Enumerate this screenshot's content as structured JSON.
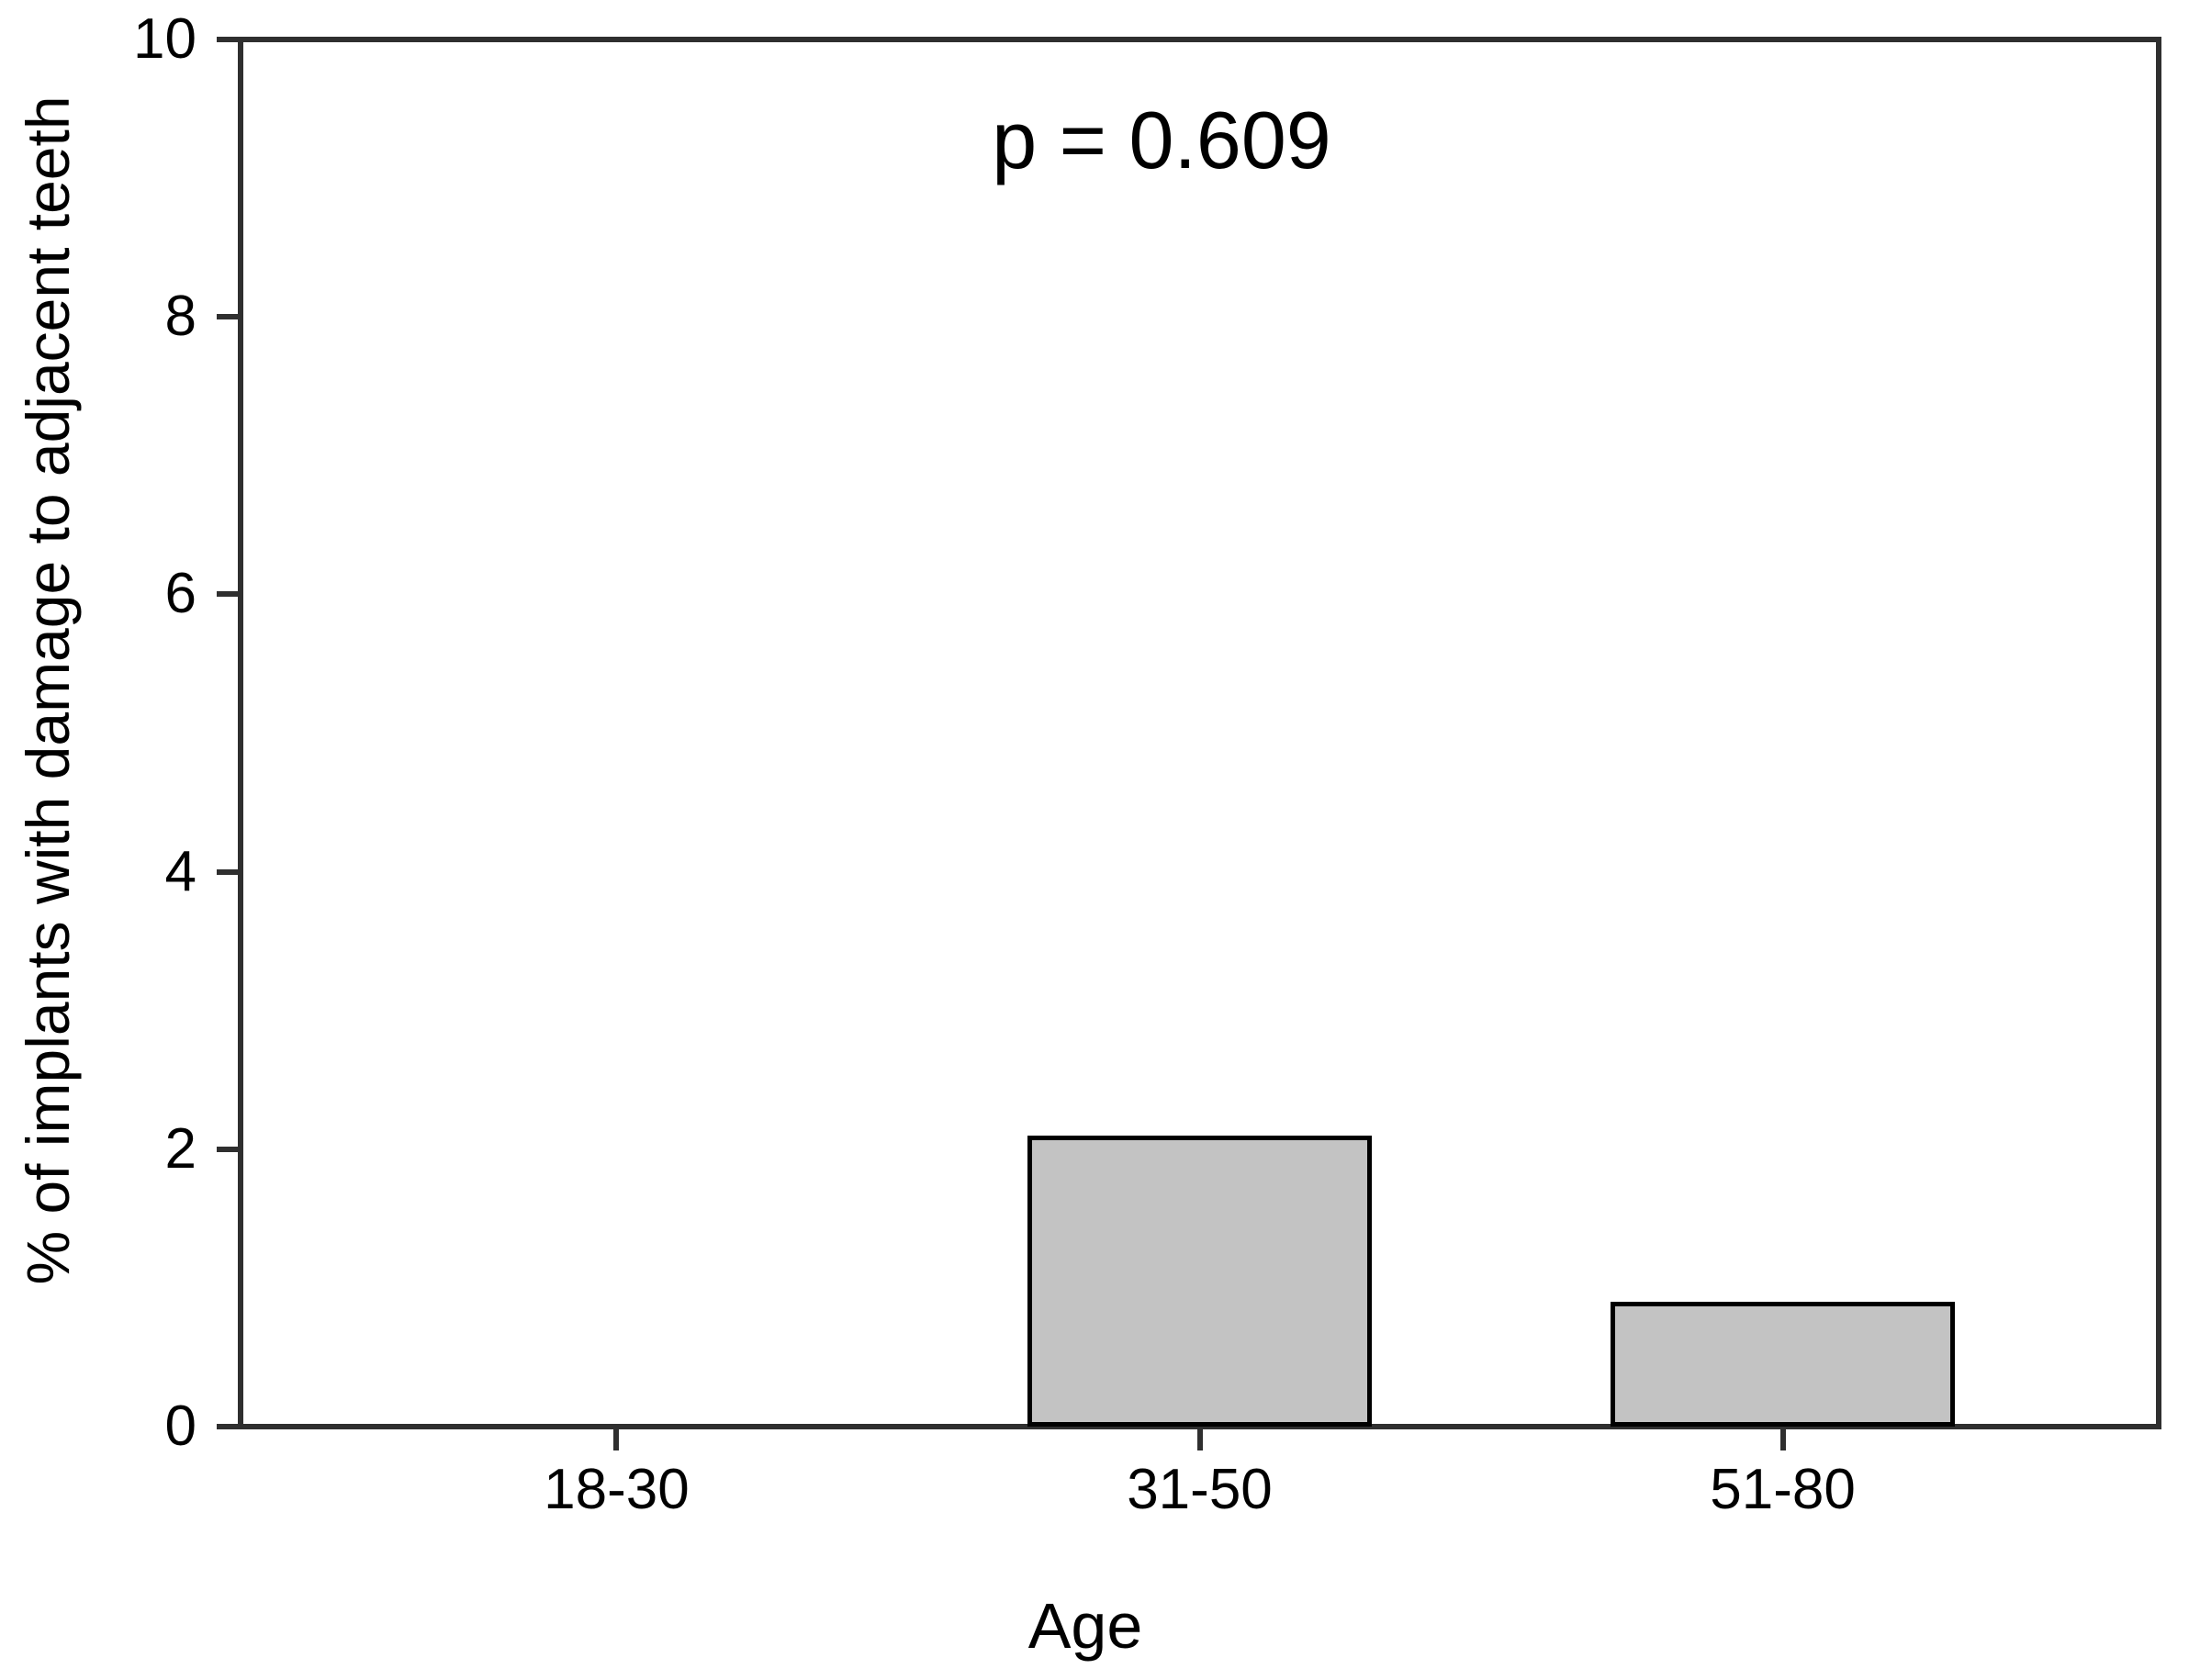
{
  "chart_data": {
    "type": "bar",
    "title": "",
    "annotation": "p = 0.609",
    "categories": [
      "18-30",
      "31-50",
      "51-80"
    ],
    "values": [
      0,
      2.1,
      0.9
    ],
    "xlabel": "Age",
    "ylabel": "% of implants with damage to adjacent teeth",
    "ylim": [
      0,
      10
    ],
    "yticks": [
      0,
      2,
      4,
      6,
      8,
      10
    ],
    "grid": false,
    "legend": "none",
    "bar_fill_color": "#c3c3c3",
    "bar_border_color": "#000000",
    "axis_color": "#2f2f2f",
    "text_color": "#000000",
    "background_color": "#ffffff"
  }
}
